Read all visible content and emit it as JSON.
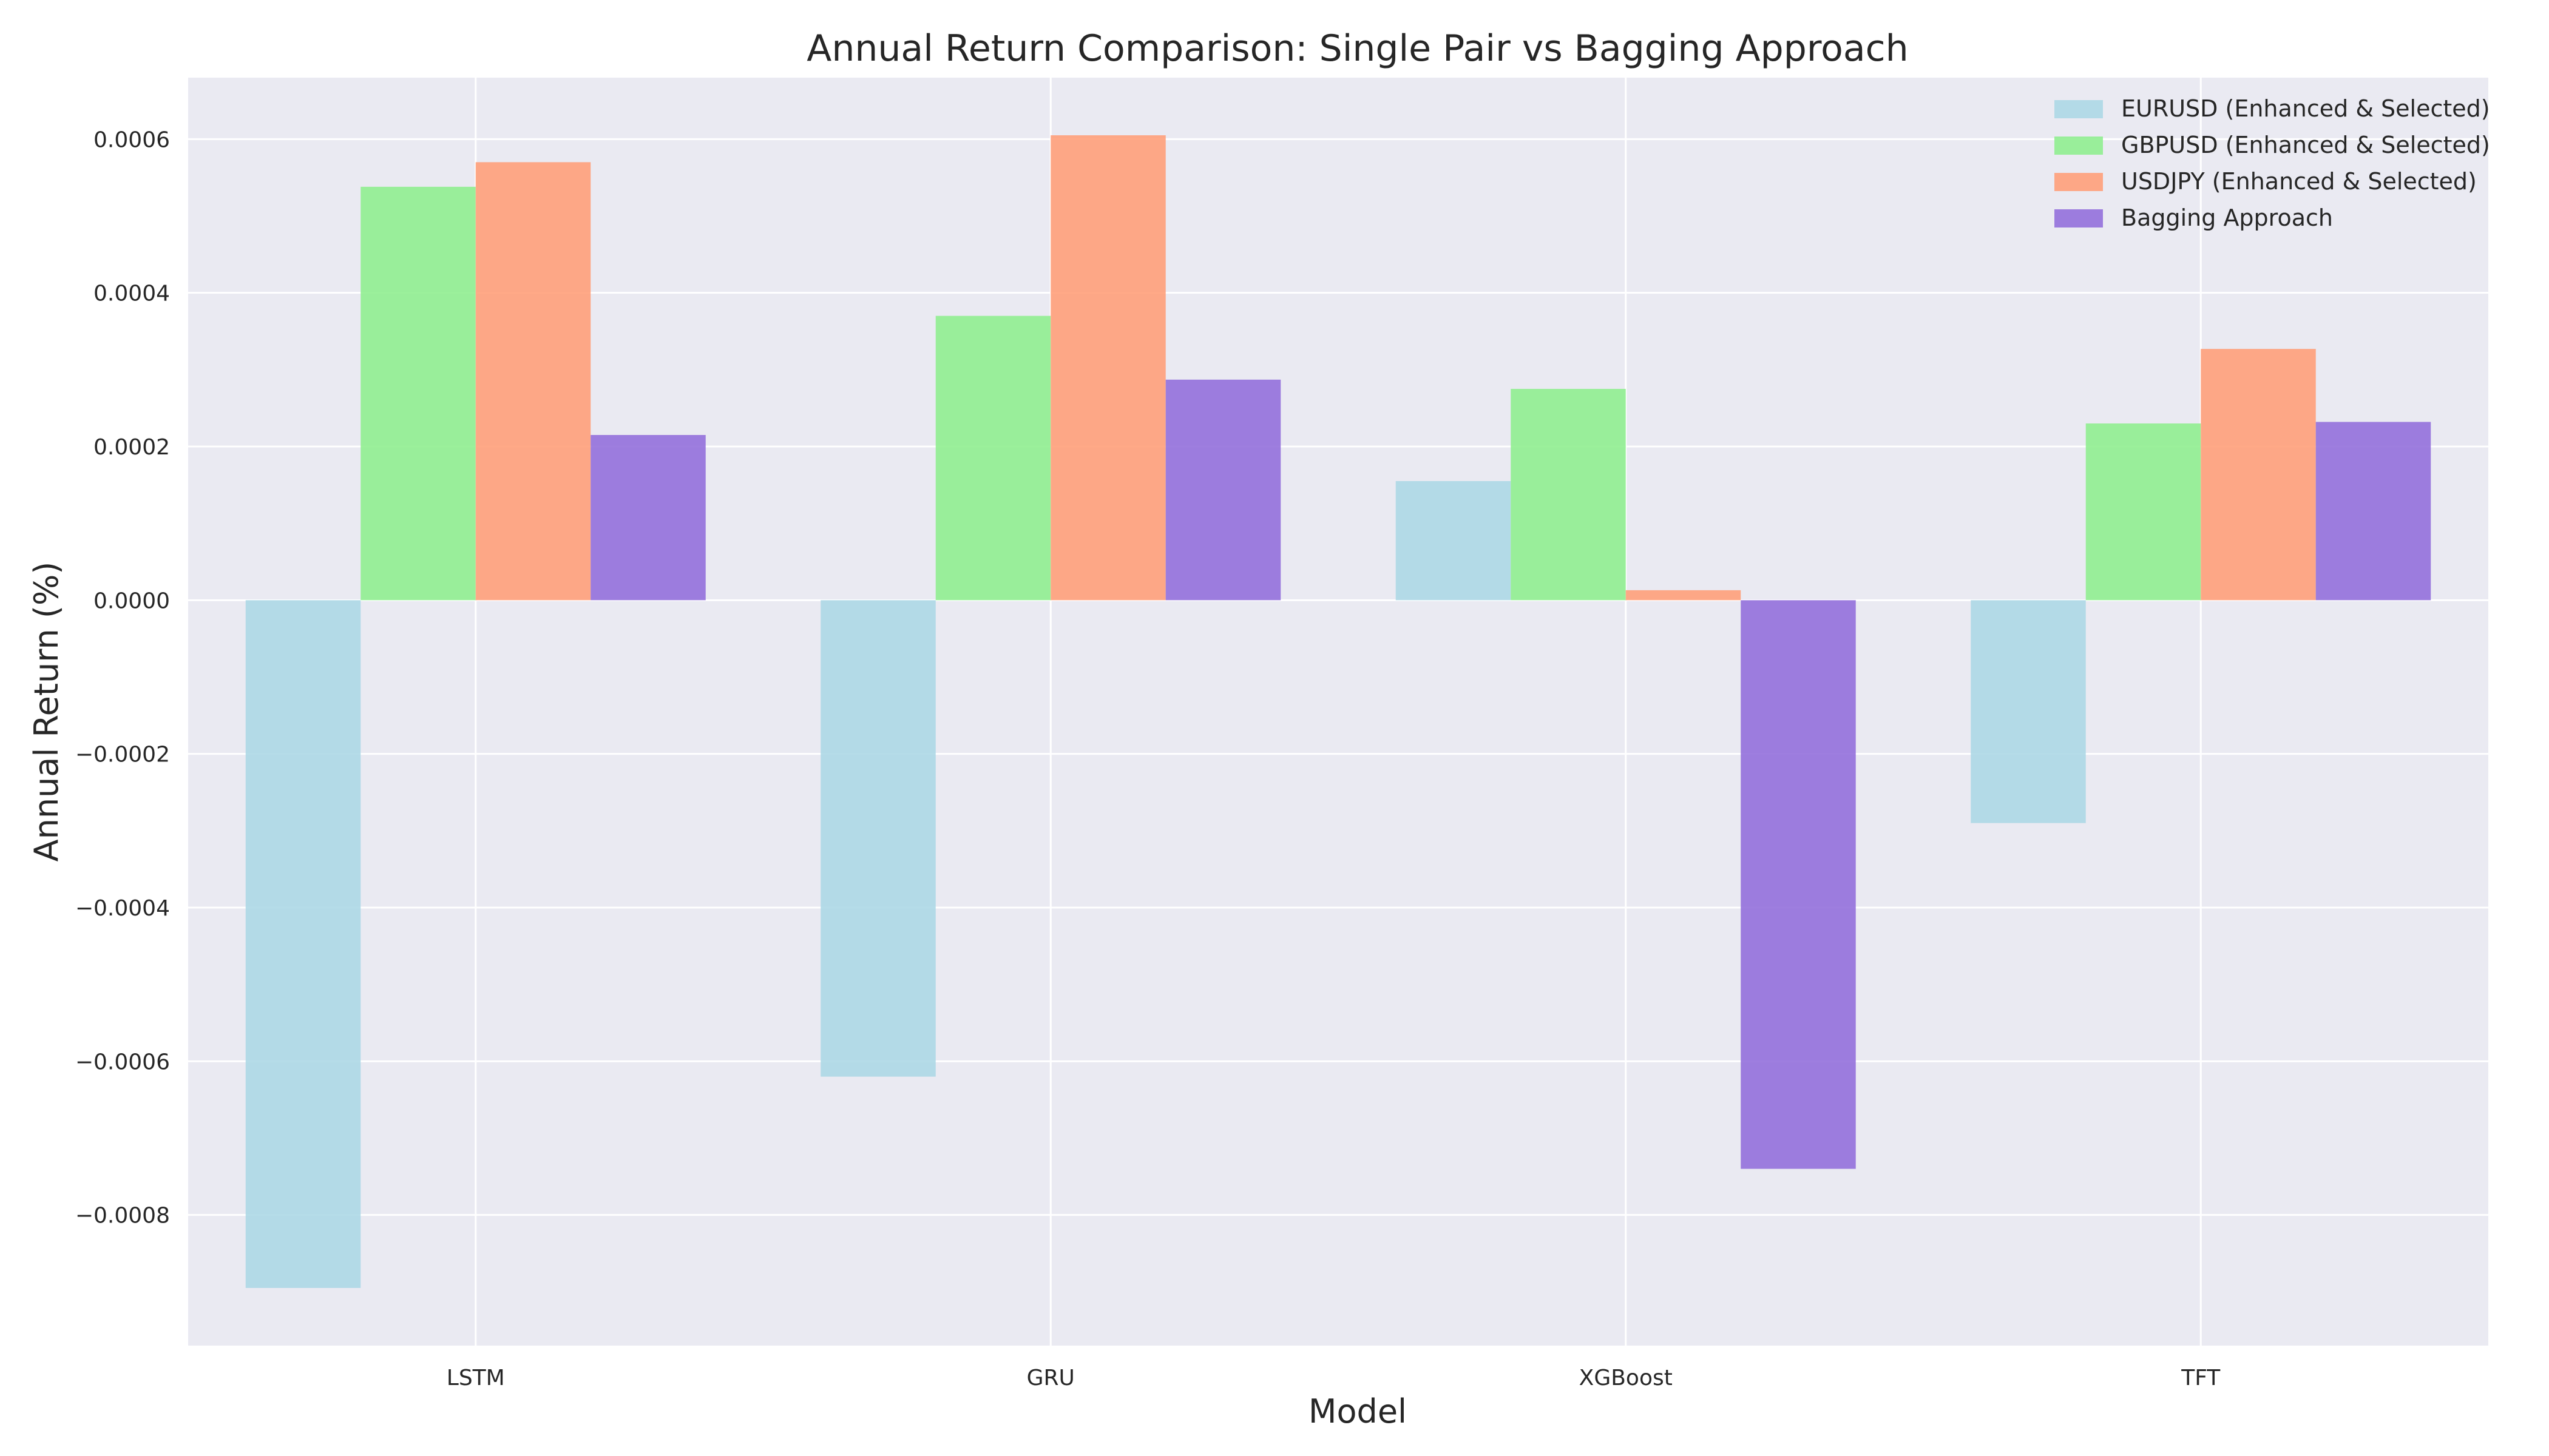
{
  "chart_data": {
    "type": "bar",
    "title": "Annual Return Comparison: Single Pair vs Bagging Approach",
    "xlabel": "Model",
    "ylabel": "Annual Return (%)",
    "categories": [
      "LSTM",
      "GRU",
      "XGBoost",
      "TFT"
    ],
    "series": [
      {
        "name": "EURUSD (Enhanced & Selected)",
        "color": "#add8e6",
        "values": [
          -0.000895,
          -0.00062,
          0.000155,
          -0.00029
        ]
      },
      {
        "name": "GBPUSD (Enhanced & Selected)",
        "color": "#90ee90",
        "values": [
          0.000538,
          0.00037,
          0.000275,
          0.00023
        ]
      },
      {
        "name": "USDJPY (Enhanced & Selected)",
        "color": "#ffa07a",
        "values": [
          0.00057,
          0.000605,
          1.3e-05,
          0.000327
        ]
      },
      {
        "name": "Bagging Approach",
        "color": "#9370db",
        "values": [
          0.000215,
          0.000287,
          -0.00074,
          0.000232
        ]
      }
    ],
    "ylim": [
      -0.00097,
      0.00068
    ],
    "yticks": [
      -0.0008,
      -0.0006,
      -0.0004,
      -0.0002,
      0.0,
      0.0002,
      0.0004,
      0.0006
    ],
    "ytick_labels": [
      "−0.0008",
      "−0.0006",
      "−0.0004",
      "−0.0002",
      "0.0000",
      "0.0002",
      "0.0004",
      "0.0006"
    ],
    "grid": true,
    "legend_position": "top-right",
    "background_color": "#eaeaf2",
    "grid_color": "#ffffff"
  }
}
